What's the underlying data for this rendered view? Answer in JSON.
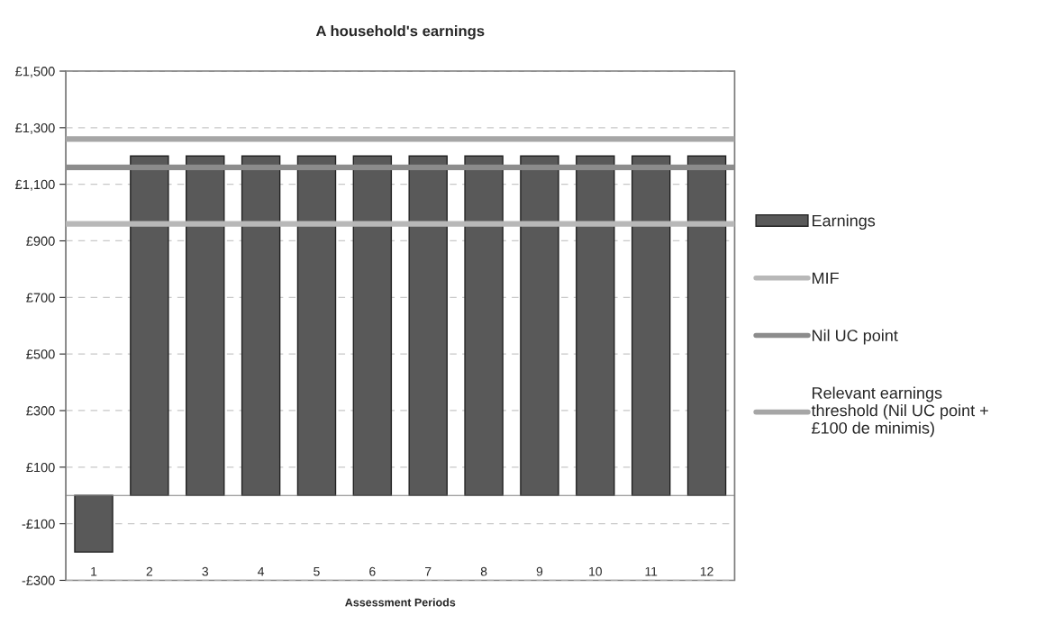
{
  "chart_data": {
    "type": "bar",
    "title": "A household's earnings",
    "xlabel": "Assessment Periods",
    "categories": [
      "1",
      "2",
      "3",
      "4",
      "5",
      "6",
      "7",
      "8",
      "9",
      "10",
      "11",
      "12"
    ],
    "series": [
      {
        "name": "Earnings",
        "color": "#595959",
        "values": [
          -200,
          1200,
          1200,
          1200,
          1200,
          1200,
          1200,
          1200,
          1200,
          1200,
          1200,
          1200
        ]
      }
    ],
    "ref_lines": [
      {
        "axis": "y",
        "value": 960,
        "label": "MIF",
        "color": "#b8b8b8"
      },
      {
        "axis": "y",
        "value": 1160,
        "label": "Nil UC point",
        "color": "#8c8c8c"
      },
      {
        "axis": "y",
        "value": 1260,
        "label": "Relevant earnings\nthreshold (Nil UC point +\n£100 de minimis)",
        "color": "#a6a6a6"
      }
    ],
    "ylim": [
      -300,
      1500
    ],
    "yticks": [
      {
        "value": -300,
        "label": "-£300"
      },
      {
        "value": -100,
        "label": "-£100"
      },
      {
        "value": 100,
        "label": "£100"
      },
      {
        "value": 300,
        "label": "£300"
      },
      {
        "value": 500,
        "label": "£500"
      },
      {
        "value": 700,
        "label": "£700"
      },
      {
        "value": 900,
        "label": "£900"
      },
      {
        "value": 1100,
        "label": "£1,100"
      },
      {
        "value": 1300,
        "label": "£1,300"
      },
      {
        "value": 1500,
        "label": "£1,500"
      }
    ],
    "grid": "y",
    "legend": "right"
  }
}
